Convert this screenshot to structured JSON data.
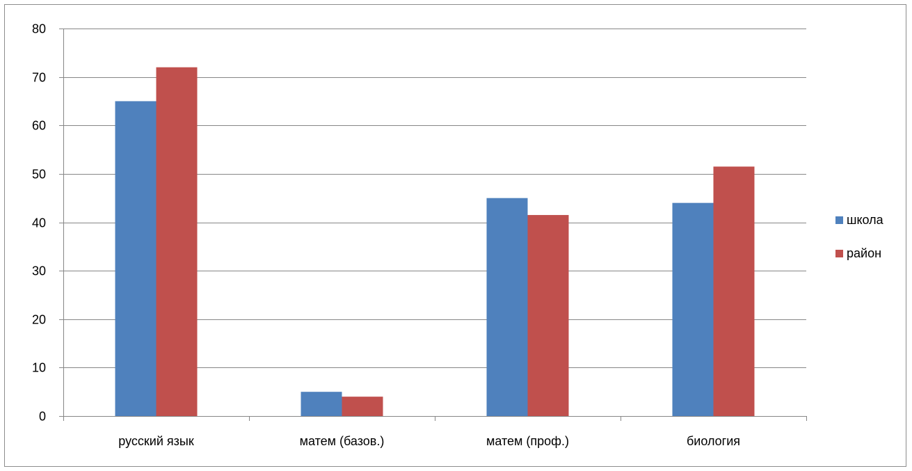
{
  "chart_data": {
    "type": "bar",
    "title": "",
    "xlabel": "",
    "ylabel": "",
    "categories": [
      "русский язык",
      "матем (базов.)",
      "матем (проф.)",
      "биология"
    ],
    "series": [
      {
        "name": "школа",
        "values": [
          65,
          5,
          45,
          44
        ],
        "color": "#4f81bd"
      },
      {
        "name": "район",
        "values": [
          72,
          4,
          41.5,
          51.5
        ],
        "color": "#c0504d"
      }
    ],
    "ylim": [
      0,
      80
    ],
    "yticks": [
      0,
      10,
      20,
      30,
      40,
      50,
      60,
      70,
      80
    ],
    "grid": true,
    "legend_position": "right"
  }
}
